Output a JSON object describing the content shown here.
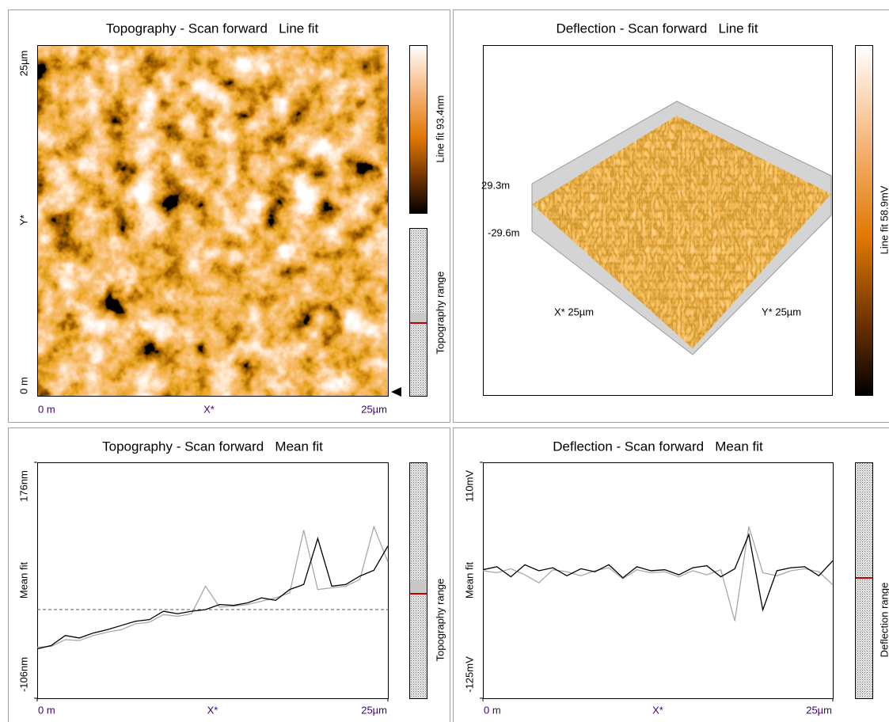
{
  "panels": [
    {
      "title": "Topography - Scan forward   Line fit",
      "y_top": "25µm",
      "y_label": "Y*",
      "y_bottom": "0 m",
      "x_left": "0 m",
      "x_label": "X*",
      "x_right": "25µm",
      "colorbar_label": "Line fit 93.4nm",
      "range_label": "Topography range"
    },
    {
      "title": "Deflection - Scan forward   Line fit",
      "z_top": "29.3m",
      "z_bottom": "-29.6m",
      "x_label": "X* 25µm",
      "y_label": "Y* 25µm",
      "colorbar_label": "Line fit 58.9mV"
    }
  ],
  "chart_data": [
    {
      "type": "line",
      "title": "Topography - Scan forward   Mean fit",
      "ylabel": "Mean fit",
      "xlabel": "X*",
      "range_label": "Topography range",
      "xlim": [
        0,
        25
      ],
      "xticks": [
        {
          "value": 0,
          "label": "0 m"
        },
        {
          "value": 25,
          "label": "25µm"
        }
      ],
      "ylim": [
        -106,
        176
      ],
      "yticks": [
        {
          "value": 176,
          "label": "176nm"
        },
        {
          "value": -106,
          "label": "-106nm"
        }
      ],
      "x": [
        0,
        1,
        2,
        3,
        4,
        5,
        6,
        7,
        8,
        9,
        10,
        11,
        12,
        13,
        14,
        15,
        16,
        17,
        18,
        19,
        20,
        21,
        22,
        23,
        24,
        25
      ],
      "series": [
        {
          "color": "#a8a8a8",
          "values": [
            -45,
            -44,
            -36,
            -37,
            -31,
            -27,
            -24,
            -17,
            -15,
            -6,
            -8,
            -5,
            28,
            3,
            4,
            6,
            10,
            14,
            20,
            95,
            24,
            26,
            28,
            36,
            99,
            57
          ]
        },
        {
          "color": "#000000",
          "values": [
            -47,
            -43,
            -31,
            -34,
            -28,
            -24,
            -19,
            -14,
            -12,
            -2,
            -5,
            -2,
            0,
            6,
            5,
            8,
            14,
            11,
            24,
            30,
            85,
            28,
            30,
            40,
            47,
            76
          ]
        }
      ]
    },
    {
      "type": "line",
      "title": "Deflection - Scan forward   Mean fit",
      "ylabel": "Mean fit",
      "xlabel": "X*",
      "range_label": "Deflection range",
      "xlim": [
        0,
        25
      ],
      "xticks": [
        {
          "value": 0,
          "label": "0 m"
        },
        {
          "value": 25,
          "label": "25µm"
        }
      ],
      "ylim": [
        -125,
        110
      ],
      "yticks": [
        {
          "value": 110,
          "label": "110mV"
        },
        {
          "value": -125,
          "label": "-125mV"
        }
      ],
      "x": [
        0,
        1,
        2,
        3,
        4,
        5,
        6,
        7,
        8,
        9,
        10,
        11,
        12,
        13,
        14,
        15,
        16,
        17,
        18,
        19,
        20,
        21,
        22,
        23,
        24,
        25
      ],
      "series": [
        {
          "color": "#a8a8a8",
          "values": [
            2,
            0,
            4,
            -2,
            -10,
            3,
            1,
            -3,
            2,
            5,
            -6,
            3,
            0,
            1,
            -4,
            2,
            -2,
            3,
            -48,
            46,
            0,
            -3,
            2,
            4,
            1,
            -12
          ]
        },
        {
          "color": "#000000",
          "values": [
            3,
            6,
            -4,
            8,
            2,
            5,
            -3,
            4,
            1,
            8,
            -5,
            6,
            2,
            3,
            -2,
            5,
            7,
            -4,
            4,
            38,
            -37,
            2,
            5,
            6,
            -3,
            12
          ]
        }
      ]
    }
  ]
}
